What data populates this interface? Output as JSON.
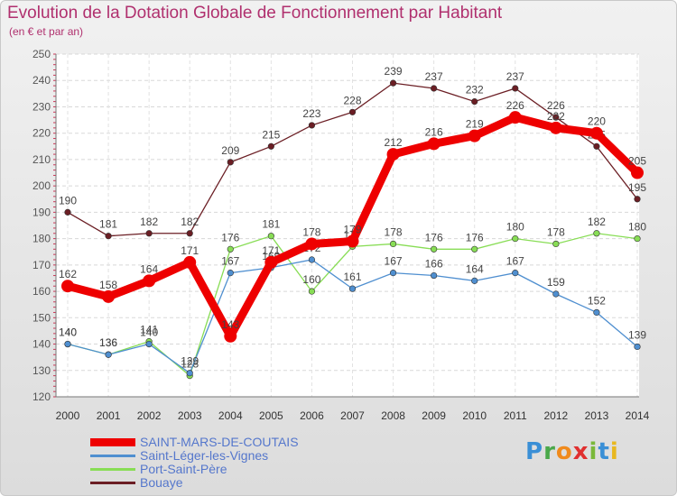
{
  "title": "Evolution de la Dotation Globale de Fonctionnement par Habitant",
  "subtitle": "(en € et par an)",
  "logo": {
    "letters": [
      "P",
      "r",
      "o",
      "x",
      "i",
      "t",
      "i"
    ],
    "colors": [
      "#3a8fd6",
      "#4aa84a",
      "#f08a1c",
      "#e03030",
      "#7ab83a",
      "#3a8fd6",
      "#e8b820"
    ]
  },
  "chart_data": {
    "type": "line",
    "title": "Evolution de la Dotation Globale de Fonctionnement par Habitant",
    "ylabel": "(en € et par an)",
    "xlabel": "",
    "ylim": [
      120,
      250
    ],
    "yticks": [
      120,
      130,
      140,
      150,
      160,
      170,
      180,
      190,
      200,
      210,
      220,
      230,
      240,
      250
    ],
    "categories": [
      "2000",
      "2001",
      "2002",
      "2003",
      "2004",
      "2005",
      "2006",
      "2007",
      "2008",
      "2009",
      "2010",
      "2011",
      "2012",
      "2013",
      "2014"
    ],
    "grid": true,
    "legend": "bottom-left",
    "series": [
      {
        "name": "Bouaye",
        "color": "#6b1e24",
        "highlight": false,
        "values": [
          190,
          181,
          182,
          182,
          209,
          215,
          223,
          228,
          239,
          237,
          232,
          237,
          226,
          215,
          195
        ],
        "labels": [
          "190",
          "181",
          "182",
          "182",
          "209",
          "215",
          "223",
          "228",
          "239",
          "237",
          "232",
          "237",
          "226",
          "215",
          "195"
        ]
      },
      {
        "name": "Port-Saint-Père",
        "color": "#88dd55",
        "highlight": false,
        "values": [
          140,
          136,
          141,
          128,
          176,
          181,
          160,
          177,
          178,
          176,
          176,
          180,
          178,
          182,
          180
        ],
        "labels": [
          "140",
          "136",
          "141",
          "128",
          "176",
          "181",
          "160",
          "177",
          "178",
          "176",
          "176",
          "180",
          "178",
          "182",
          "180"
        ]
      },
      {
        "name": "Saint-Léger-les-Vignes",
        "color": "#4f8fd0",
        "highlight": false,
        "values": [
          140,
          136,
          140,
          129,
          167,
          169,
          172,
          161,
          167,
          166,
          164,
          167,
          159,
          152,
          139
        ],
        "labels": [
          "140",
          "136",
          "140",
          "129",
          "167",
          "169",
          "172",
          "161",
          "167",
          "166",
          "164",
          "167",
          "159",
          "152",
          "139"
        ]
      },
      {
        "name": "SAINT-MARS-DE-COUTAIS",
        "color": "#ee0000",
        "highlight": true,
        "values": [
          162,
          158,
          164,
          171,
          143,
          171,
          178,
          179,
          212,
          216,
          219,
          226,
          222,
          220,
          205
        ],
        "labels": [
          "162",
          "158",
          "164",
          "171",
          "143",
          "171",
          "178",
          "179",
          "212",
          "216",
          "219",
          "226",
          "222",
          "220",
          "205"
        ]
      }
    ],
    "legend_order": [
      "SAINT-MARS-DE-COUTAIS",
      "Saint-Léger-les-Vignes",
      "Port-Saint-Père",
      "Bouaye"
    ]
  }
}
